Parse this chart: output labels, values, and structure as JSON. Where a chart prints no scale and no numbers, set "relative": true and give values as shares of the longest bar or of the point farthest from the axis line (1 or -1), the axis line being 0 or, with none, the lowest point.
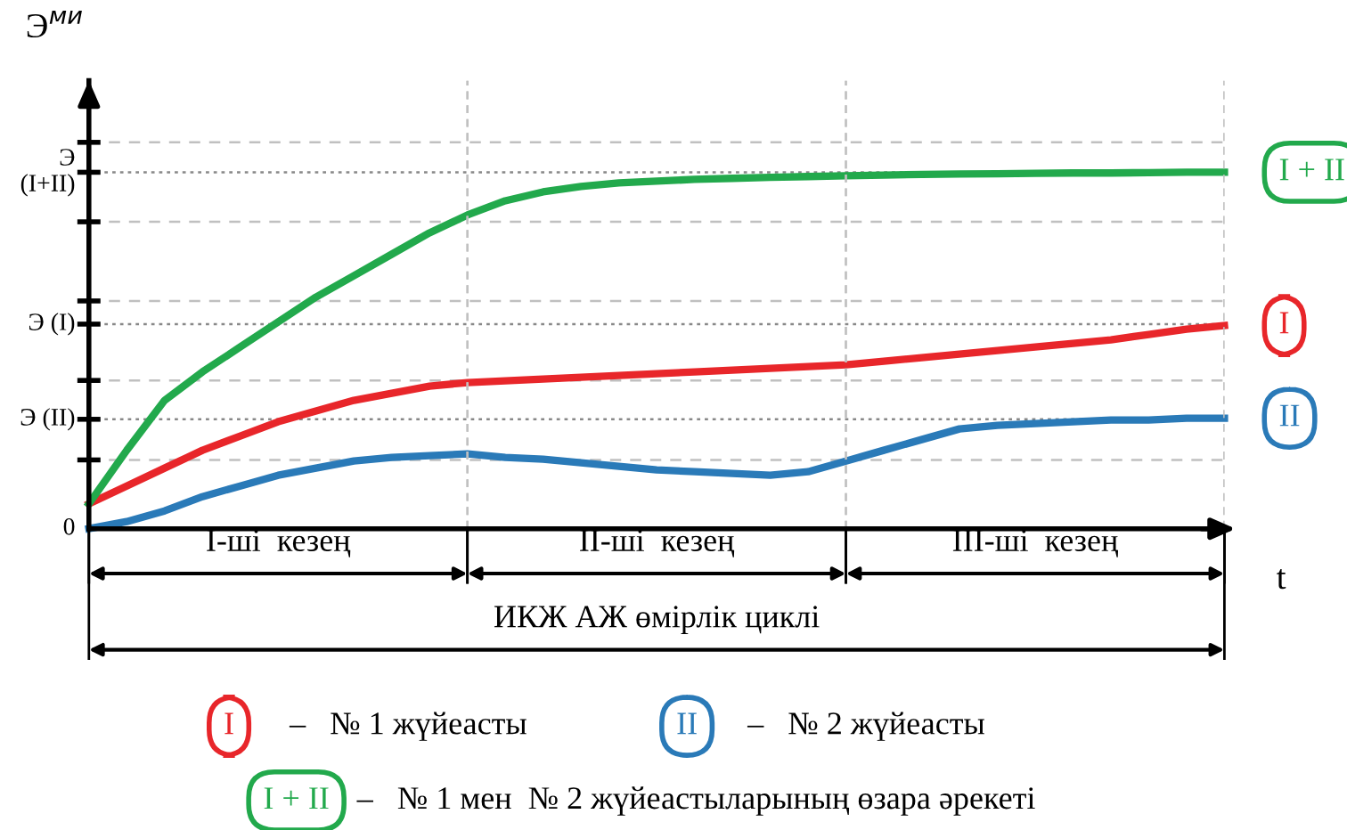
{
  "chart_data": {
    "type": "line",
    "ylabel": "Э$^{ми}$",
    "xlabel": "t",
    "categories": [
      null,
      null,
      null,
      null,
      null,
      null,
      null,
      null,
      null,
      null,
      null,
      null,
      null,
      null,
      null,
      null,
      null,
      null,
      null,
      null,
      null,
      null,
      null,
      null,
      null,
      null,
      null,
      null,
      null,
      null,
      null
    ],
    "relative": true,
    "ref_lines": [
      {
        "axis": "y",
        "value": 0,
        "label": "0"
      },
      {
        "axis": "y",
        "value": 0.193,
        "label": null,
        "line_style": "dashed"
      },
      {
        "axis": "y",
        "value": 0.307,
        "label": "Э (II)",
        "line_style": "dotted"
      },
      {
        "axis": "y",
        "value": 0.416,
        "label": null,
        "line_style": "dashed"
      },
      {
        "axis": "y",
        "value": 0.574,
        "label": "Э (I)",
        "line_style": "dotted"
      },
      {
        "axis": "y",
        "value": 0.639,
        "label": null,
        "line_style": "dashed"
      },
      {
        "axis": "y",
        "value": 0.861,
        "label": null,
        "line_style": "dashed"
      },
      {
        "axis": "y",
        "value": 1.0,
        "label": "Э\n(I+II)",
        "line_style": "dotted"
      },
      {
        "axis": "y",
        "value": 1.084,
        "label": null,
        "line_style": "dashed"
      }
    ],
    "grid": "x",
    "line_style": "solid",
    "marker": "none",
    "series": [
      {
        "name": "I",
        "color": "#e8262a",
        "values": [
          0.07,
          0.12,
          0.17,
          0.22,
          0.26,
          0.3,
          0.33,
          0.36,
          0.38,
          0.4,
          0.41,
          0.415,
          0.42,
          0.425,
          0.43,
          0.435,
          0.44,
          0.445,
          0.45,
          0.455,
          0.46,
          0.47,
          0.48,
          0.49,
          0.5,
          0.51,
          0.52,
          0.53,
          0.545,
          0.56,
          0.57
        ]
      },
      {
        "name": "II",
        "color": "#2a7ab8",
        "values": [
          0.0,
          0.02,
          0.05,
          0.09,
          0.12,
          0.15,
          0.17,
          0.19,
          0.2,
          0.205,
          0.21,
          0.2,
          0.195,
          0.185,
          0.175,
          0.165,
          0.16,
          0.155,
          0.15,
          0.16,
          0.19,
          0.22,
          0.25,
          0.28,
          0.29,
          0.295,
          0.3,
          0.305,
          0.305,
          0.31,
          0.31
        ]
      },
      {
        "name": "I + II",
        "color": "#22a94c",
        "values": [
          0.07,
          0.22,
          0.36,
          0.44,
          0.51,
          0.58,
          0.65,
          0.71,
          0.77,
          0.83,
          0.88,
          0.92,
          0.945,
          0.96,
          0.97,
          0.975,
          0.98,
          0.983,
          0.986,
          0.988,
          0.99,
          0.992,
          0.994,
          0.995,
          0.996,
          0.997,
          0.998,
          0.998,
          0.999,
          1.0,
          1.0
        ]
      }
    ],
    "annotations": [
      "I-ші  кезең",
      "II-ші  кезең",
      "III-ші  кезең",
      "ИКЖ АЖ өмірлік циклі",
      "–   № 1 жүйеасты",
      "–   № 2 жүйеасты",
      "–   № 1 мен  № 2 жүйеастыларының өзара әрекеті"
    ]
  }
}
